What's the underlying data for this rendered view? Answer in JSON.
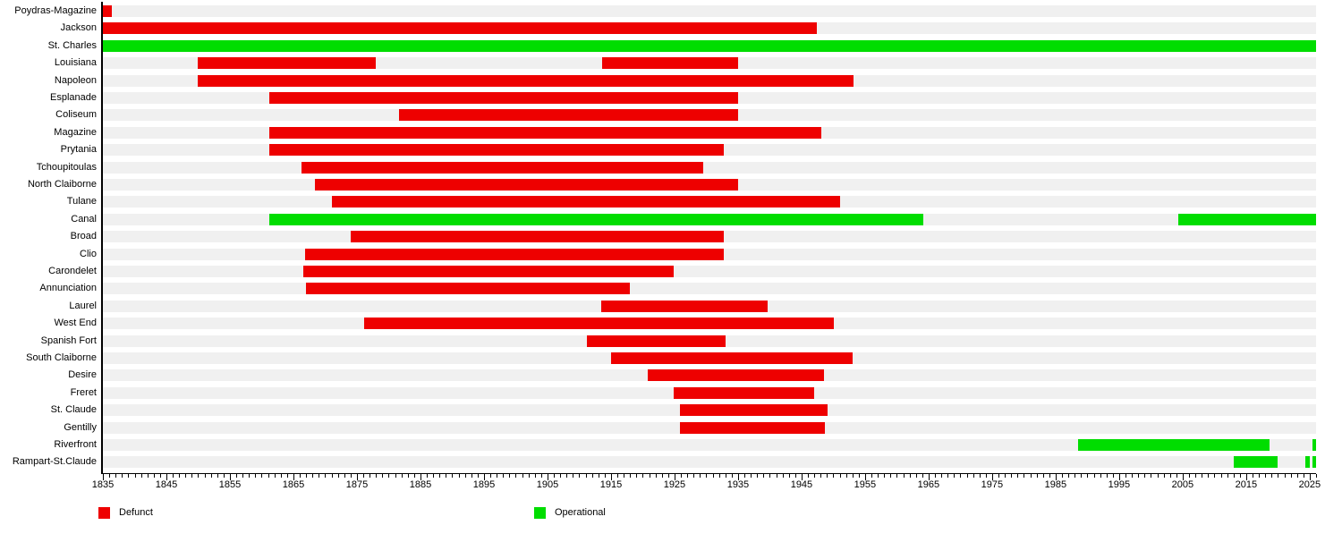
{
  "chart_data": {
    "type": "gantt-timeline",
    "title": "",
    "x_domain": [
      1835,
      2026
    ],
    "x_ticks_major": [
      1835,
      1845,
      1855,
      1865,
      1875,
      1885,
      1895,
      1905,
      1915,
      1925,
      1935,
      1945,
      1955,
      1965,
      1975,
      1985,
      1995,
      2005,
      2015,
      2025
    ],
    "x_tick_minor_step": 1,
    "grid": false,
    "legend_position": "bottom",
    "colors": {
      "defunct": "#ee0000",
      "operational": "#00dd00",
      "row_track": "#f0f0f0",
      "axis": "#000000",
      "background": "#ffffff"
    },
    "legend": [
      {
        "label": "Defunct",
        "status": "defunct",
        "color": "#ee0000"
      },
      {
        "label": "Operational",
        "status": "operational",
        "color": "#00dd00"
      }
    ],
    "rows": [
      {
        "label": "Poydras-Magazine",
        "segments": [
          {
            "start": 1835.0,
            "end": 1836.4,
            "status": "defunct"
          }
        ]
      },
      {
        "label": "Jackson",
        "segments": [
          {
            "start": 1835.0,
            "end": 1947.4,
            "status": "defunct"
          }
        ]
      },
      {
        "label": "St. Charles",
        "segments": [
          {
            "start": 1835.0,
            "end": 2026.0,
            "status": "operational"
          }
        ]
      },
      {
        "label": "Louisiana",
        "segments": [
          {
            "start": 1850.0,
            "end": 1877.9,
            "status": "defunct"
          },
          {
            "start": 1913.6,
            "end": 1935.0,
            "status": "defunct"
          }
        ]
      },
      {
        "label": "Napoleon",
        "segments": [
          {
            "start": 1850.0,
            "end": 1953.2,
            "status": "defunct"
          }
        ]
      },
      {
        "label": "Esplanade",
        "segments": [
          {
            "start": 1861.2,
            "end": 1935.0,
            "status": "defunct"
          }
        ]
      },
      {
        "label": "Coliseum",
        "segments": [
          {
            "start": 1881.6,
            "end": 1935.0,
            "status": "defunct"
          }
        ]
      },
      {
        "label": "Magazine",
        "segments": [
          {
            "start": 1861.2,
            "end": 1948.1,
            "status": "defunct"
          }
        ]
      },
      {
        "label": "Prytania",
        "segments": [
          {
            "start": 1861.2,
            "end": 1932.8,
            "status": "defunct"
          }
        ]
      },
      {
        "label": "Tchoupitoulas",
        "segments": [
          {
            "start": 1866.2,
            "end": 1929.5,
            "status": "defunct"
          }
        ]
      },
      {
        "label": "North Claiborne",
        "segments": [
          {
            "start": 1868.4,
            "end": 1935.0,
            "status": "defunct"
          }
        ]
      },
      {
        "label": "Tulane",
        "segments": [
          {
            "start": 1871.1,
            "end": 1951.1,
            "status": "defunct"
          }
        ]
      },
      {
        "label": "Canal",
        "segments": [
          {
            "start": 1861.2,
            "end": 1964.2,
            "status": "operational"
          },
          {
            "start": 2004.3,
            "end": 2026.0,
            "status": "operational"
          }
        ]
      },
      {
        "label": "Broad",
        "segments": [
          {
            "start": 1874.0,
            "end": 1932.7,
            "status": "defunct"
          }
        ]
      },
      {
        "label": "Clio",
        "segments": [
          {
            "start": 1866.9,
            "end": 1932.8,
            "status": "defunct"
          }
        ]
      },
      {
        "label": "Carondelet",
        "segments": [
          {
            "start": 1866.6,
            "end": 1924.8,
            "status": "defunct"
          }
        ]
      },
      {
        "label": "Annunciation",
        "segments": [
          {
            "start": 1867.0,
            "end": 1918.0,
            "status": "defunct"
          }
        ]
      },
      {
        "label": "Laurel",
        "segments": [
          {
            "start": 1913.5,
            "end": 1939.6,
            "status": "defunct"
          }
        ]
      },
      {
        "label": "West End",
        "segments": [
          {
            "start": 1876.1,
            "end": 1950.1,
            "status": "defunct"
          }
        ]
      },
      {
        "label": "Spanish Fort",
        "segments": [
          {
            "start": 1911.2,
            "end": 1933.0,
            "status": "defunct"
          }
        ]
      },
      {
        "label": "South Claiborne",
        "segments": [
          {
            "start": 1915.0,
            "end": 1953.1,
            "status": "defunct"
          }
        ]
      },
      {
        "label": "Desire",
        "segments": [
          {
            "start": 1920.8,
            "end": 1948.6,
            "status": "defunct"
          }
        ]
      },
      {
        "label": "Freret",
        "segments": [
          {
            "start": 1924.8,
            "end": 1947.0,
            "status": "defunct"
          }
        ]
      },
      {
        "label": "St. Claude",
        "segments": [
          {
            "start": 1925.9,
            "end": 1949.1,
            "status": "defunct"
          }
        ]
      },
      {
        "label": "Gentilly",
        "segments": [
          {
            "start": 1925.9,
            "end": 1948.7,
            "status": "defunct"
          }
        ]
      },
      {
        "label": "Riverfront",
        "segments": [
          {
            "start": 1988.6,
            "end": 2018.7,
            "status": "operational"
          },
          {
            "start": 2025.4,
            "end": 2026.0,
            "status": "operational"
          }
        ]
      },
      {
        "label": "Rampart-St.Claude",
        "segments": [
          {
            "start": 2013.1,
            "end": 2020.0,
            "status": "operational"
          },
          {
            "start": 2024.3,
            "end": 2025.0,
            "status": "operational"
          },
          {
            "start": 2025.4,
            "end": 2026.0,
            "status": "operational"
          }
        ]
      }
    ]
  }
}
